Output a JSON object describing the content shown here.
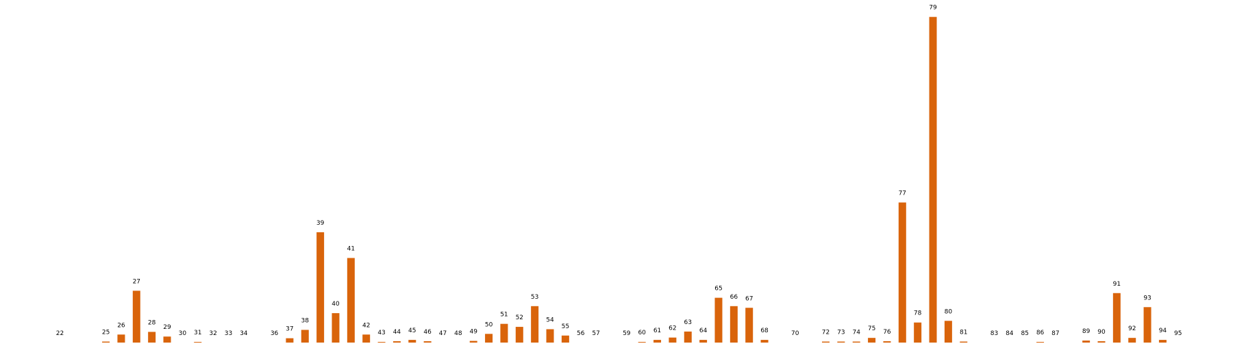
{
  "chart_data": {
    "type": "bar",
    "title": "",
    "xlabel": "",
    "ylabel": "",
    "ylim": [
      0,
      100
    ],
    "grid": false,
    "legend": "none",
    "bar_color": "#D9640B",
    "categories": [
      "22",
      "25",
      "26",
      "27",
      "28",
      "29",
      "30",
      "31",
      "32",
      "33",
      "34",
      "36",
      "37",
      "38",
      "39",
      "40",
      "41",
      "42",
      "43",
      "44",
      "45",
      "46",
      "47",
      "48",
      "49",
      "50",
      "51",
      "52",
      "53",
      "54",
      "55",
      "56",
      "57",
      "59",
      "60",
      "61",
      "62",
      "63",
      "64",
      "65",
      "66",
      "67",
      "68",
      "70",
      "72",
      "73",
      "74",
      "75",
      "76",
      "77",
      "78",
      "79",
      "80",
      "81",
      "83",
      "84",
      "85",
      "86",
      "87",
      "89",
      "90",
      "91",
      "92",
      "93",
      "94",
      "95"
    ],
    "values": [
      0,
      0.3,
      2.4,
      15.5,
      3.2,
      1.8,
      0,
      0.2,
      0,
      0,
      0,
      0,
      1.3,
      3.8,
      33.0,
      8.8,
      25.3,
      2.4,
      0.2,
      0.4,
      0.8,
      0.4,
      0,
      0,
      0.5,
      2.6,
      5.6,
      4.7,
      10.9,
      4.0,
      2.1,
      0,
      0,
      0,
      0.2,
      0.8,
      1.5,
      3.3,
      0.8,
      13.4,
      10.9,
      10.4,
      0.8,
      0,
      0.3,
      0.3,
      0.3,
      1.4,
      0.4,
      41.9,
      6.0,
      97.4,
      6.5,
      0.3,
      0,
      0,
      0,
      0.2,
      0,
      0.6,
      0.4,
      14.8,
      1.4,
      10.6,
      0.8,
      0
    ]
  }
}
